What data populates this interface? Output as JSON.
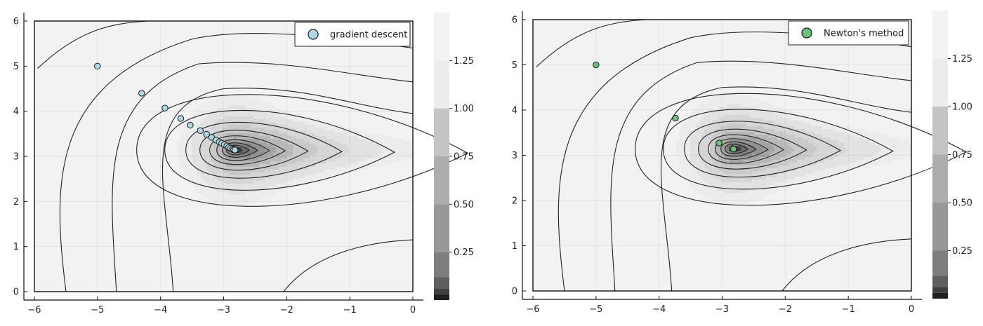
{
  "chart_data": [
    {
      "type": "contour",
      "xlim": [
        -6,
        0
      ],
      "ylim": [
        0,
        6
      ],
      "x_ticks": [
        -6,
        -5,
        -4,
        -3,
        -2,
        -1,
        0
      ],
      "y_ticks": [
        0,
        1,
        2,
        3,
        4,
        5,
        6
      ],
      "grid": true,
      "legend_position": "top-right",
      "colorbar": {
        "ticks": [
          0.25,
          0.5,
          0.75,
          1.0,
          1.25
        ],
        "tick_labels": [
          "0.25",
          "0.50",
          "0.75",
          "1.00",
          "1.25"
        ],
        "colormap": "grays"
      },
      "series": [
        {
          "name": "gradient descent",
          "color": "#add8e6",
          "x": [
            -5.0,
            -4.3,
            -3.93,
            -3.68,
            -3.53,
            -3.37,
            -3.27,
            -3.19,
            -3.12,
            -3.07,
            -3.03,
            -2.99,
            -2.95,
            -2.92,
            -2.89,
            -2.86,
            -2.84,
            -2.82
          ],
          "y": [
            5.0,
            4.4,
            4.07,
            3.84,
            3.69,
            3.57,
            3.49,
            3.42,
            3.36,
            3.32,
            3.29,
            3.26,
            3.23,
            3.2,
            3.18,
            3.16,
            3.15,
            3.14
          ]
        }
      ]
    },
    {
      "type": "contour",
      "xlim": [
        -6,
        0
      ],
      "ylim": [
        0,
        6
      ],
      "x_ticks": [
        -6,
        -5,
        -4,
        -3,
        -2,
        -1,
        0
      ],
      "y_ticks": [
        0,
        1,
        2,
        3,
        4,
        5,
        6
      ],
      "grid": true,
      "legend_position": "top-right",
      "colorbar": {
        "ticks": [
          0.25,
          0.5,
          0.75,
          1.0,
          1.25
        ],
        "tick_labels": [
          "0.25",
          "0.50",
          "0.75",
          "1.00",
          "1.25"
        ],
        "colormap": "grays"
      },
      "series": [
        {
          "name": "Newton's method",
          "color": "#6cc17c",
          "x": [
            -5.0,
            -3.74,
            -3.05,
            -2.84,
            -2.82
          ],
          "y": [
            5.0,
            3.82,
            3.27,
            3.15,
            3.14
          ]
        }
      ]
    }
  ]
}
